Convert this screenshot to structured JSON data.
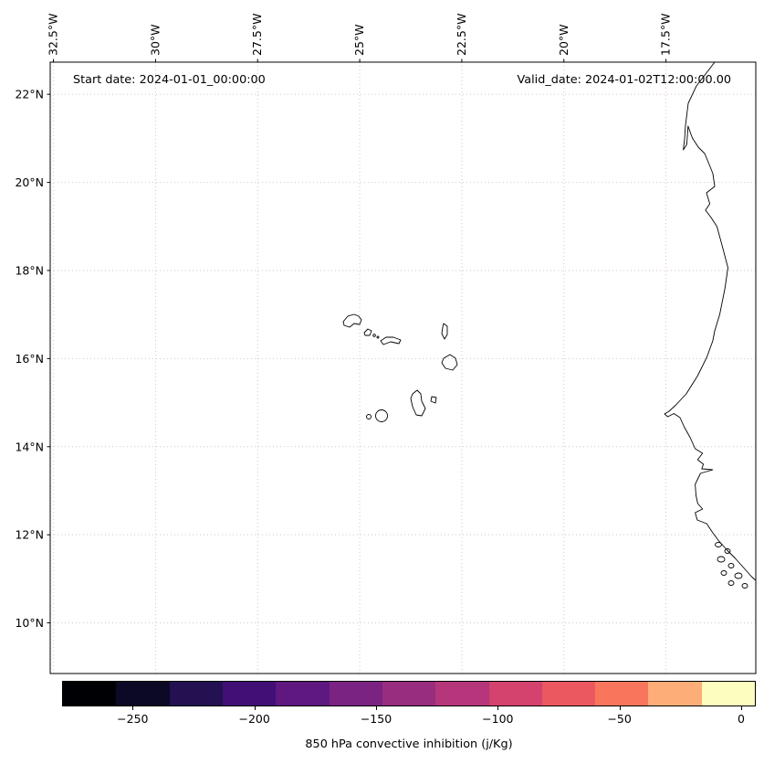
{
  "map": {
    "annotations": {
      "start_date": "Start date: 2024-01-01_00:00:00",
      "valid_date": "Valid_date: 2024-01-02T12:00:00.00"
    },
    "axes": {
      "lon_extent": [
        -32.58,
        -15.3
      ],
      "lat_extent": [
        22.73,
        8.85
      ],
      "lon_ticks": [
        {
          "label": "32.5°W",
          "value": -32.5
        },
        {
          "label": "30°W",
          "value": -30
        },
        {
          "label": "27.5°W",
          "value": -27.5
        },
        {
          "label": "25°W",
          "value": -25
        },
        {
          "label": "22.5°W",
          "value": -22.5
        },
        {
          "label": "20°W",
          "value": -20
        },
        {
          "label": "17.5°W",
          "value": -17.5
        }
      ],
      "lat_ticks": [
        {
          "label": "22°N",
          "value": 22
        },
        {
          "label": "20°N",
          "value": 20
        },
        {
          "label": "18°N",
          "value": 18
        },
        {
          "label": "16°N",
          "value": 16
        },
        {
          "label": "14°N",
          "value": 14
        },
        {
          "label": "12°N",
          "value": 12
        },
        {
          "label": "10°N",
          "value": 10
        }
      ]
    }
  },
  "colorbar": {
    "label": "850 hPa convective inhibition (j/Kg)",
    "vmin": -279,
    "vmax": 6,
    "ticks": [
      {
        "label": "−250",
        "value": -250
      },
      {
        "label": "−200",
        "value": -200
      },
      {
        "label": "−150",
        "value": -150
      },
      {
        "label": "−100",
        "value": -100
      },
      {
        "label": "−50",
        "value": -50
      },
      {
        "label": "0",
        "value": 0
      }
    ],
    "segment_colors": [
      "#000004",
      "#0c0926",
      "#231151",
      "#410f75",
      "#5f187f",
      "#7b2382",
      "#982d80",
      "#b5367a",
      "#d3436e",
      "#ec5860",
      "#f8765c",
      "#fdae78",
      "#fcfdbf"
    ]
  },
  "colors": {
    "coastline": "#000000",
    "gridline": "#d9c2c2",
    "background": "#ffffff"
  },
  "chart_data": {
    "type": "map",
    "variable": "850 hPa convective inhibition (j/Kg)",
    "extent": {
      "lon_west": [
        -32.6,
        -15.3
      ],
      "lat_north": [
        8.9,
        22.7
      ]
    },
    "colormap": {
      "style": "magma-like discrete",
      "n_segments": 13,
      "range": [
        -279,
        6
      ],
      "tick_values": [
        -250,
        -200,
        -150,
        -100,
        -50,
        0
      ]
    },
    "gridlines": {
      "linestyle": "dotted",
      "lon_ticks_deg_west": [
        32.5,
        30,
        27.5,
        25,
        22.5,
        20,
        17.5
      ],
      "lat_ticks_deg_north": [
        22,
        20,
        18,
        16,
        14,
        12,
        10
      ]
    },
    "annotations": [
      "Start date: 2024-01-01_00:00:00",
      "Valid_date: 2024-01-02T12:00:00.00"
    ],
    "visible_geography": [
      "Cape Verde islands",
      "West African coastline (Mauritania, Senegal, Gambia, Guinea-Bissau)"
    ]
  }
}
